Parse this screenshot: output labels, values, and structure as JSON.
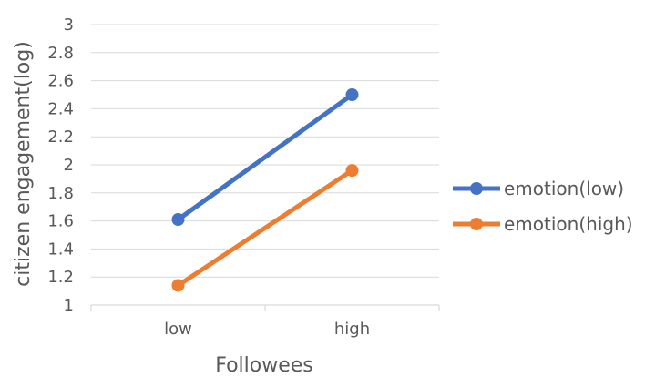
{
  "chart_data": {
    "type": "line",
    "title": "",
    "xlabel": "Followees",
    "ylabel": "citizen engagement(log)",
    "categories": [
      "low",
      "high"
    ],
    "ylim": [
      1,
      3
    ],
    "yticks": [
      "1",
      "1.2",
      "1.4",
      "1.6",
      "1.8",
      "2",
      "2.2",
      "2.4",
      "2.6",
      "2.8",
      "3"
    ],
    "grid": true,
    "legend": "right",
    "series": [
      {
        "name": "emotion(low)",
        "values": [
          1.61,
          2.5
        ],
        "color": "#4472c4"
      },
      {
        "name": "emotion(high)",
        "values": [
          1.14,
          1.96
        ],
        "color": "#ed7d31"
      }
    ]
  }
}
